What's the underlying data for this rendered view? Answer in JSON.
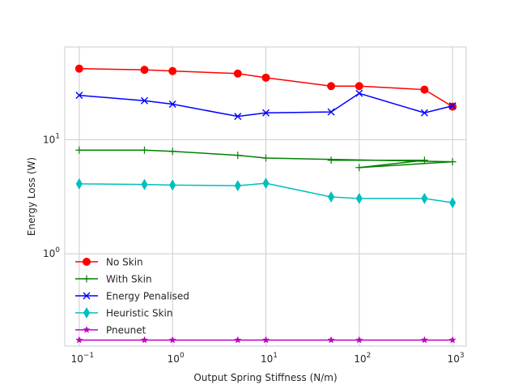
{
  "chart_data": {
    "type": "line",
    "xscale": "log",
    "yscale": "log",
    "title": "",
    "xlabel": "Output Spring Stiffness (N/m)",
    "ylabel": "Energy Loss (W)",
    "xlim": [
      0.07,
      1400
    ],
    "ylim": [
      0.155,
      65
    ],
    "grid": true,
    "legend_position": "lower-left",
    "x_ticks": [
      {
        "value": 0.1,
        "base": "10",
        "exp": "−1"
      },
      {
        "value": 1,
        "base": "10",
        "exp": "0"
      },
      {
        "value": 10,
        "base": "10",
        "exp": "1"
      },
      {
        "value": 100,
        "base": "10",
        "exp": "2"
      },
      {
        "value": 1000,
        "base": "10",
        "exp": "3"
      }
    ],
    "y_ticks": [
      {
        "value": 1,
        "base": "10",
        "exp": "0"
      },
      {
        "value": 10,
        "base": "10",
        "exp": "1"
      }
    ],
    "x": [
      0.1,
      0.5,
      1,
      5,
      10,
      50,
      100,
      500,
      1000
    ],
    "series": [
      {
        "name": "No Skin",
        "color": "#ff0000",
        "marker": "circle",
        "x": [
          0.1,
          0.5,
          1,
          5,
          10,
          50,
          100,
          500,
          1000
        ],
        "values": [
          42,
          41,
          40,
          38,
          35,
          29.5,
          29.5,
          27.5,
          19.5
        ]
      },
      {
        "name": "With Skin",
        "color": "#008000",
        "marker": "plus",
        "x": [
          0.1,
          0.5,
          1,
          5,
          10,
          1000,
          100,
          500,
          50
        ],
        "values": [
          8.1,
          8.1,
          7.9,
          7.3,
          6.9,
          6.4,
          5.7,
          6.6,
          6.6
        ]
      },
      {
        "name": "Energy Penalised",
        "color": "#0000ff",
        "marker": "x",
        "x": [
          0.1,
          0.5,
          1,
          5,
          10,
          50,
          100,
          500,
          1000
        ],
        "values": [
          24.5,
          22,
          20.5,
          16,
          17.2,
          17.5,
          25.5,
          17.2,
          19.8
        ]
      },
      {
        "name": "Heuristic Skin",
        "color": "#00bfbf",
        "marker": "thin-diamond",
        "x": [
          0.1,
          0.5,
          1,
          5,
          10,
          50,
          100,
          500,
          1000
        ],
        "values": [
          4.1,
          4.05,
          4.0,
          3.95,
          4.15,
          3.15,
          3.05,
          3.05,
          2.8
        ]
      },
      {
        "name": "Pneunet",
        "color": "#bf00bf",
        "marker": "star",
        "x": [
          0.1,
          0.5,
          1,
          5,
          10,
          50,
          100,
          500,
          1000
        ],
        "values": [
          0.175,
          0.175,
          0.175,
          0.175,
          0.175,
          0.175,
          0.175,
          0.175,
          0.175
        ]
      }
    ]
  }
}
